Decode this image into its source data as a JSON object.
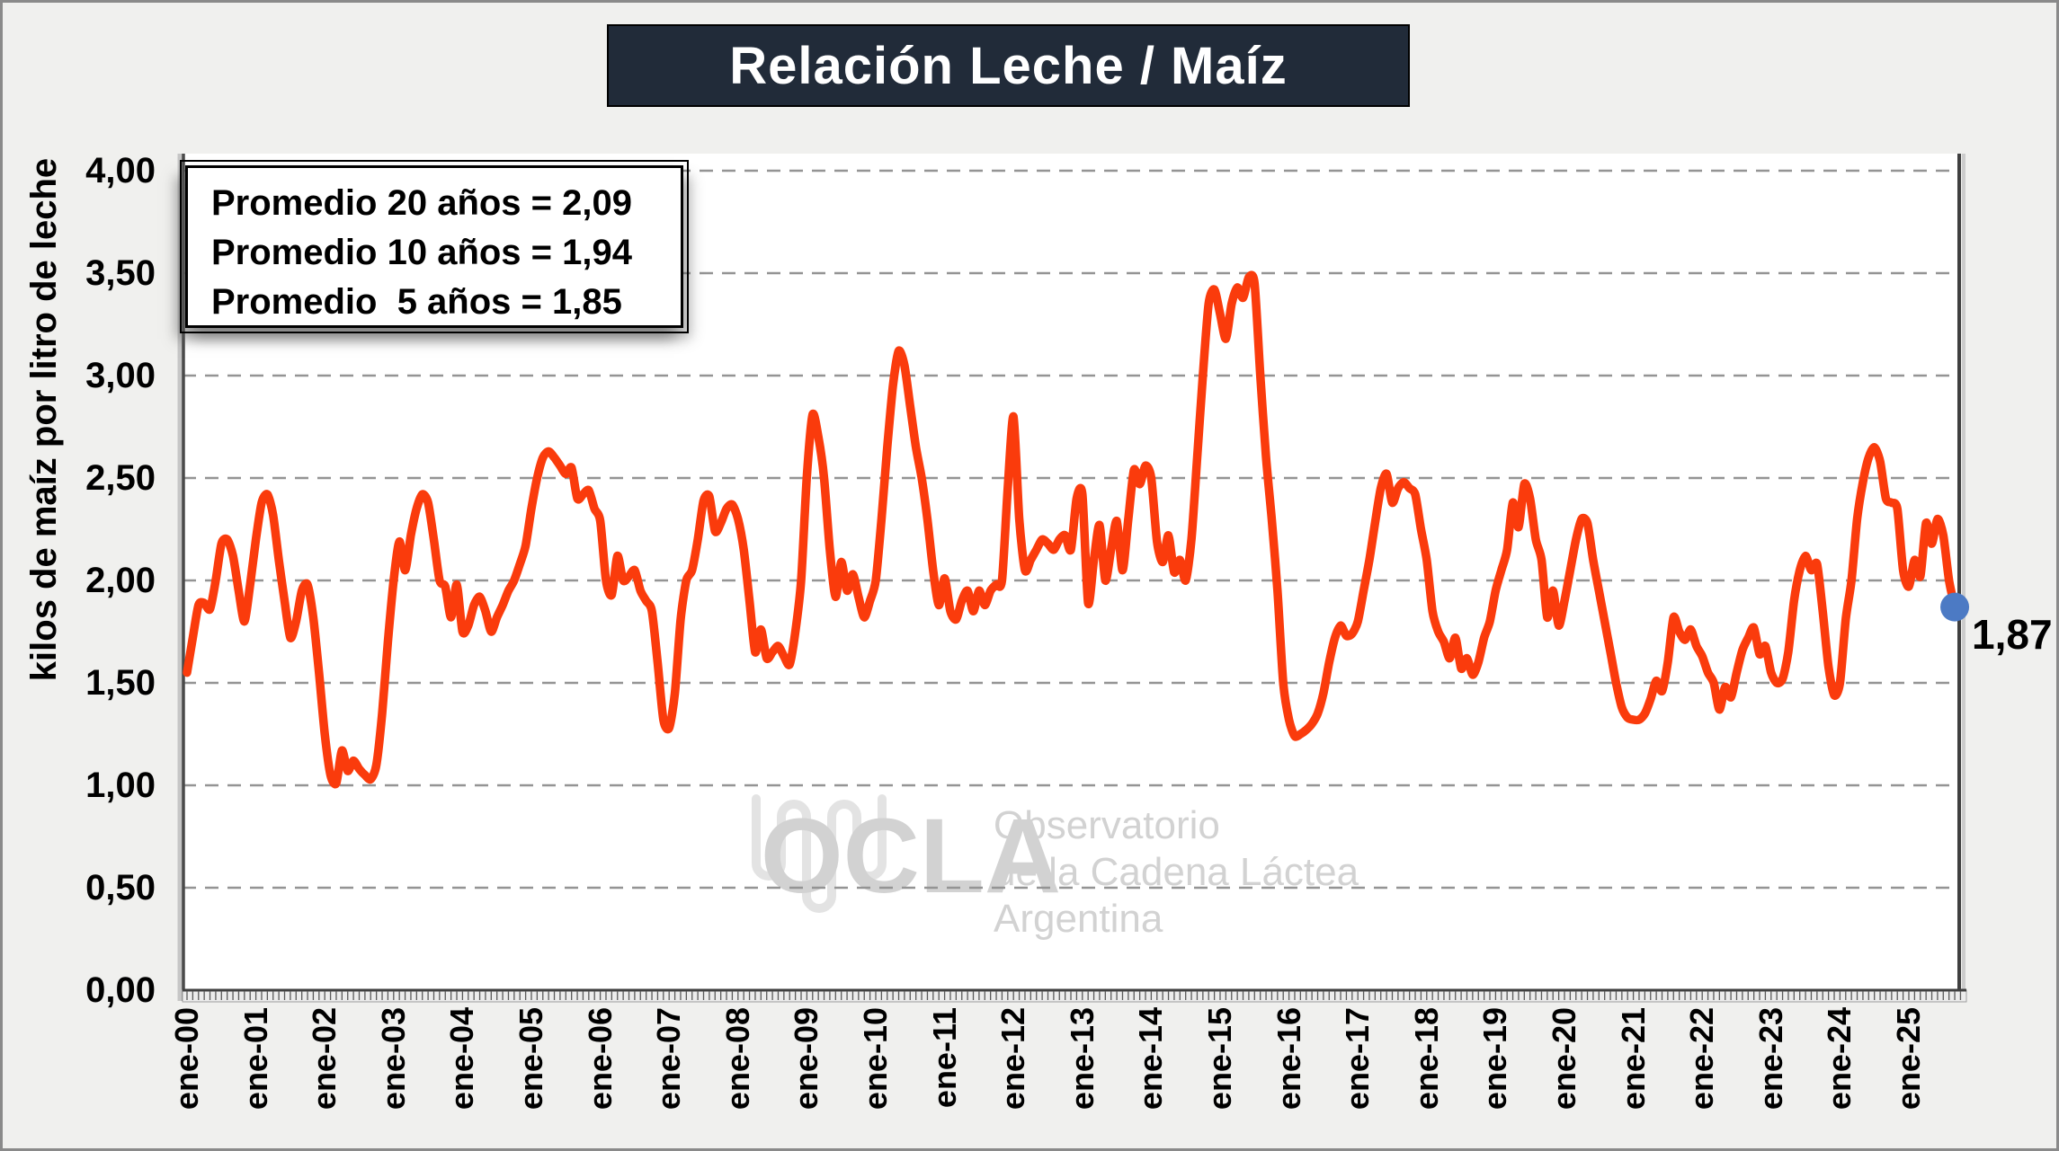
{
  "title": {
    "text": "Relación Leche / Maíz"
  },
  "averages_box": {
    "line1": "Promedio 20 años = 2,09",
    "line2": "Promedio 10 años = 1,94",
    "line3": "Promedio  5 años = 1,85"
  },
  "end_label": "1,87",
  "watermark": {
    "icon": "milk-wave-icon",
    "acronym": "OCLA",
    "line1": "Observatorio",
    "line2": "de la Cadena Láctea",
    "line3": "Argentina"
  },
  "axis": {
    "ylabel": "kilos de maíz por litro de leche",
    "y_ticks": [
      "0,00",
      "0,50",
      "1,00",
      "1,50",
      "2,00",
      "2,50",
      "3,00",
      "3,50",
      "4,00"
    ],
    "x_ticks": [
      "ene-00",
      "ene-01",
      "ene-02",
      "ene-03",
      "ene-04",
      "ene-05",
      "ene-06",
      "ene-07",
      "ene-08",
      "ene-09",
      "ene-10",
      "ene-11",
      "ene-12",
      "ene-13",
      "ene-14",
      "ene-15",
      "ene-16",
      "ene-17",
      "ene-18",
      "ene-19",
      "ene-20",
      "ene-21",
      "ene-22",
      "ene-23",
      "ene-24",
      "ene-25"
    ]
  },
  "colors": {
    "line": "#fa3b0c",
    "marker": "#4c7ac4",
    "banner_bg": "#212b39",
    "grid": "#949494",
    "plot_bg": "#ffffff",
    "page_bg": "#f0f0ee",
    "watermark": "#d2d2d2"
  },
  "chart_data": {
    "type": "line",
    "title": "Relación Leche / Maíz",
    "ylabel": "kilos de maíz por litro de leche",
    "ylim": [
      0,
      4
    ],
    "grid": true,
    "legend": false,
    "frequency": "monthly",
    "start": "ene-00",
    "end": "sep-25",
    "x_tick_labels": [
      "ene-00",
      "ene-01",
      "ene-02",
      "ene-03",
      "ene-04",
      "ene-05",
      "ene-06",
      "ene-07",
      "ene-08",
      "ene-09",
      "ene-10",
      "ene-11",
      "ene-12",
      "ene-13",
      "ene-14",
      "ene-15",
      "ene-16",
      "ene-17",
      "ene-18",
      "ene-19",
      "ene-20",
      "ene-21",
      "ene-22",
      "ene-23",
      "ene-24",
      "ene-25"
    ],
    "values": [
      1.55,
      1.72,
      1.88,
      1.89,
      1.86,
      2.0,
      2.18,
      2.2,
      2.12,
      1.95,
      1.8,
      1.98,
      2.2,
      2.38,
      2.42,
      2.32,
      2.1,
      1.9,
      1.72,
      1.8,
      1.95,
      1.98,
      1.82,
      1.55,
      1.25,
      1.05,
      1.01,
      1.17,
      1.07,
      1.12,
      1.08,
      1.05,
      1.03,
      1.1,
      1.35,
      1.7,
      2.0,
      2.19,
      2.05,
      2.22,
      2.35,
      2.42,
      2.38,
      2.2,
      2.0,
      1.97,
      1.82,
      1.98,
      1.75,
      1.78,
      1.88,
      1.92,
      1.85,
      1.75,
      1.82,
      1.88,
      1.95,
      2.0,
      2.08,
      2.17,
      2.35,
      2.5,
      2.6,
      2.63,
      2.6,
      2.56,
      2.52,
      2.55,
      2.4,
      2.42,
      2.44,
      2.35,
      2.29,
      2.0,
      1.93,
      2.12,
      2.0,
      2.02,
      2.05,
      1.95,
      1.9,
      1.85,
      1.6,
      1.32,
      1.28,
      1.45,
      1.81,
      2.0,
      2.05,
      2.2,
      2.39,
      2.41,
      2.24,
      2.28,
      2.35,
      2.37,
      2.3,
      2.15,
      1.9,
      1.65,
      1.76,
      1.62,
      1.65,
      1.68,
      1.63,
      1.59,
      1.75,
      2.0,
      2.51,
      2.81,
      2.7,
      2.5,
      2.15,
      1.92,
      2.09,
      1.95,
      2.03,
      1.92,
      1.82,
      1.9,
      2.0,
      2.3,
      2.65,
      2.95,
      3.12,
      3.05,
      2.85,
      2.65,
      2.5,
      2.3,
      2.05,
      1.88,
      2.01,
      1.85,
      1.81,
      1.9,
      1.95,
      1.85,
      1.95,
      1.88,
      1.95,
      1.98,
      2.0,
      2.45,
      2.8,
      2.3,
      2.05,
      2.1,
      2.15,
      2.2,
      2.18,
      2.15,
      2.2,
      2.22,
      2.15,
      2.4,
      2.42,
      1.89,
      2.1,
      2.27,
      2.0,
      2.15,
      2.29,
      2.05,
      2.3,
      2.54,
      2.47,
      2.56,
      2.5,
      2.19,
      2.09,
      2.22,
      2.04,
      2.1,
      2.0,
      2.2,
      2.6,
      3.0,
      3.35,
      3.42,
      3.3,
      3.18,
      3.35,
      3.43,
      3.38,
      3.48,
      3.45,
      3.0,
      2.6,
      2.3,
      1.95,
      1.5,
      1.32,
      1.24,
      1.25,
      1.27,
      1.3,
      1.35,
      1.45,
      1.6,
      1.72,
      1.78,
      1.73,
      1.74,
      1.8,
      1.95,
      2.1,
      2.28,
      2.45,
      2.52,
      2.38,
      2.45,
      2.48,
      2.45,
      2.42,
      2.25,
      2.1,
      1.85,
      1.75,
      1.7,
      1.62,
      1.72,
      1.57,
      1.62,
      1.54,
      1.6,
      1.72,
      1.8,
      1.95,
      2.05,
      2.15,
      2.38,
      2.26,
      2.47,
      2.4,
      2.2,
      2.1,
      1.82,
      1.95,
      1.78,
      1.9,
      2.05,
      2.2,
      2.3,
      2.28,
      2.1,
      1.95,
      1.8,
      1.65,
      1.5,
      1.38,
      1.33,
      1.32,
      1.32,
      1.35,
      1.42,
      1.51,
      1.46,
      1.6,
      1.82,
      1.75,
      1.71,
      1.76,
      1.68,
      1.63,
      1.55,
      1.5,
      1.37,
      1.48,
      1.43,
      1.55,
      1.66,
      1.72,
      1.77,
      1.64,
      1.68,
      1.55,
      1.5,
      1.52,
      1.65,
      1.9,
      2.05,
      2.12,
      2.05,
      2.08,
      1.85,
      1.58,
      1.44,
      1.5,
      1.81,
      2.0,
      2.3,
      2.48,
      2.6,
      2.65,
      2.58,
      2.4,
      2.38,
      2.35,
      2.05,
      1.97,
      2.1,
      2.02,
      2.28,
      2.18,
      2.3,
      2.22,
      2.0,
      1.87
    ],
    "last_point": {
      "label": "1,87",
      "value": 1.87
    },
    "annotations": {
      "promedio_20_anos": 2.09,
      "promedio_10_anos": 1.94,
      "promedio_5_anos": 1.85
    }
  }
}
